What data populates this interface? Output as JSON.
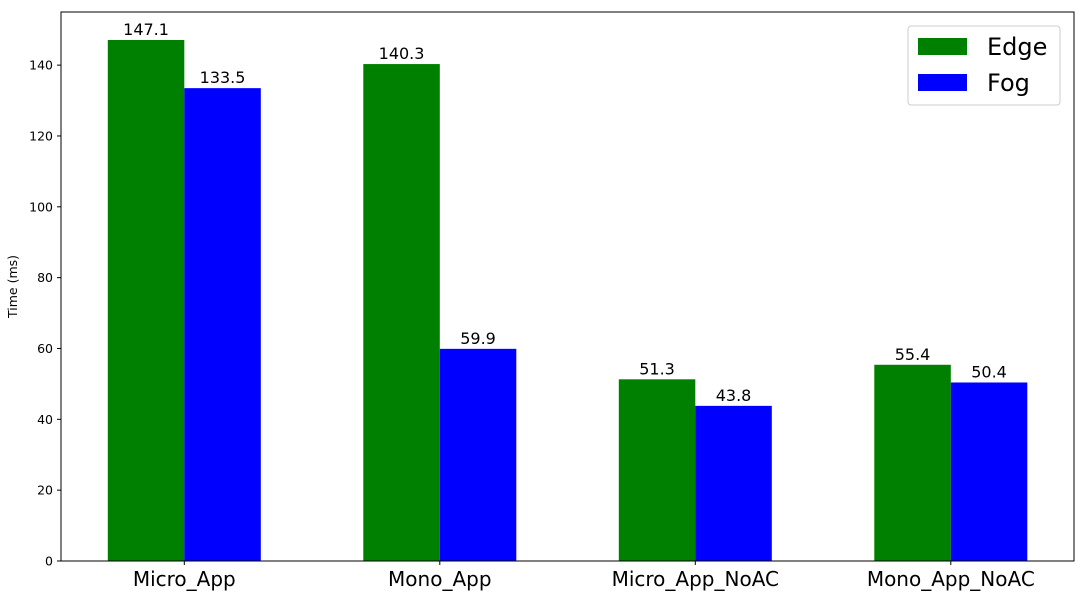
{
  "chart_data": {
    "type": "bar",
    "title": "",
    "xlabel": "",
    "ylabel": "Time (ms)",
    "ylim": [
      0,
      155
    ],
    "yticks": [
      0,
      20,
      40,
      60,
      80,
      100,
      120,
      140
    ],
    "grid": false,
    "legend_position": "top-right",
    "categories": [
      "Micro_App",
      "Mono_App",
      "Micro_App_NoAC",
      "Mono_App_NoAC"
    ],
    "series": [
      {
        "name": "Edge",
        "color": "#008000",
        "values": [
          147.1,
          140.3,
          51.3,
          55.4
        ]
      },
      {
        "name": "Fog",
        "color": "#0000ff",
        "values": [
          133.5,
          59.9,
          43.8,
          50.4
        ]
      }
    ]
  }
}
